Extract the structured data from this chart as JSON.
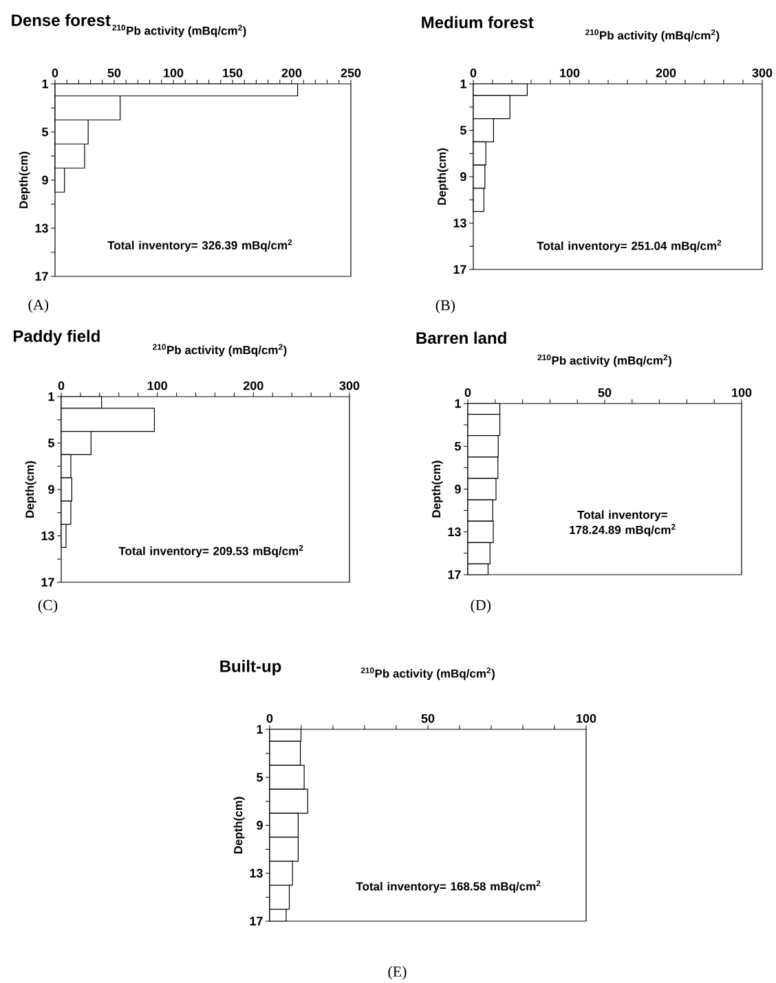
{
  "chart_data": [
    {
      "type": "histogram",
      "orientation": "horizontal",
      "title": "Dense forest",
      "xlabel": "$^{210}$Pb activity (mBq/cm$^{2}$)",
      "ylabel": "Depth(cm)",
      "color": "#ffffff",
      "bins": [
        1,
        2,
        4,
        6,
        8,
        10
      ],
      "values": [
        205,
        55,
        28,
        25,
        8
      ],
      "xlim": [
        0,
        250
      ],
      "xticks": [
        0,
        {
          "value": 10,
          "label": null
        },
        {
          "value": 20,
          "label": null
        },
        {
          "value": 30,
          "label": null
        },
        {
          "value": 40,
          "label": null
        },
        50,
        {
          "value": 60,
          "label": null
        },
        {
          "value": 70,
          "label": null
        },
        {
          "value": 80,
          "label": null
        },
        {
          "value": 90,
          "label": null
        },
        100,
        {
          "value": 110,
          "label": null
        },
        {
          "value": 120,
          "label": null
        },
        {
          "value": 130,
          "label": null
        },
        {
          "value": 140,
          "label": null
        },
        150,
        {
          "value": 160,
          "label": null
        },
        {
          "value": 170,
          "label": null
        },
        {
          "value": 180,
          "label": null
        },
        {
          "value": 190,
          "label": null
        },
        200,
        {
          "value": 210,
          "label": null
        },
        {
          "value": 220,
          "label": null
        },
        {
          "value": 230,
          "label": null
        },
        {
          "value": 240,
          "label": null
        },
        250
      ],
      "ylim": [
        17,
        1
      ],
      "yticks": [
        1,
        {
          "value": 3,
          "label": null
        },
        5,
        {
          "value": 7,
          "label": null
        },
        9,
        {
          "value": 11,
          "label": null
        },
        13,
        {
          "value": 15,
          "label": null
        },
        17
      ],
      "annotations": [
        "Total inventory= 326.39 mBq/cm$^{2}$",
        "(A)"
      ]
    },
    {
      "type": "histogram",
      "orientation": "horizontal",
      "title": "Medium forest",
      "xlabel": "$^{210}$Pb activity (mBq/cm$^{2}$)",
      "ylabel": "Depth(cm)",
      "color": "#ffffff",
      "bins": [
        1,
        2,
        4,
        6,
        8,
        10,
        12
      ],
      "values": [
        56,
        38,
        21,
        13,
        12,
        11
      ],
      "xlim": [
        0,
        300
      ],
      "xticks": [
        0,
        {
          "value": 20,
          "label": null
        },
        {
          "value": 40,
          "label": null
        },
        {
          "value": 60,
          "label": null
        },
        {
          "value": 80,
          "label": null
        },
        100,
        {
          "value": 120,
          "label": null
        },
        {
          "value": 140,
          "label": null
        },
        {
          "value": 160,
          "label": null
        },
        {
          "value": 180,
          "label": null
        },
        200,
        {
          "value": 220,
          "label": null
        },
        {
          "value": 240,
          "label": null
        },
        {
          "value": 260,
          "label": null
        },
        {
          "value": 280,
          "label": null
        },
        300
      ],
      "ylim": [
        17,
        1
      ],
      "yticks": [
        1,
        {
          "value": 3,
          "label": null
        },
        5,
        {
          "value": 7,
          "label": null
        },
        9,
        {
          "value": 11,
          "label": null
        },
        13,
        {
          "value": 15,
          "label": null
        },
        17
      ],
      "annotations": [
        "Total inventory= 251.04 mBq/cm$^{2}$",
        "(B)"
      ]
    },
    {
      "type": "histogram",
      "orientation": "horizontal",
      "title": "Paddy field",
      "xlabel": "$^{210}$Pb activity (mBq/cm$^{2}$)",
      "ylabel": "Depth(cm)",
      "color": "#ffffff",
      "bins": [
        1,
        2,
        4,
        6,
        8,
        10,
        12,
        14
      ],
      "values": [
        42,
        97,
        31,
        10,
        11,
        10,
        5
      ],
      "xlim": [
        0,
        300
      ],
      "xticks": [
        0,
        {
          "value": 20,
          "label": null
        },
        {
          "value": 40,
          "label": null
        },
        {
          "value": 60,
          "label": null
        },
        {
          "value": 80,
          "label": null
        },
        100,
        {
          "value": 120,
          "label": null
        },
        {
          "value": 140,
          "label": null
        },
        {
          "value": 160,
          "label": null
        },
        {
          "value": 180,
          "label": null
        },
        200,
        {
          "value": 220,
          "label": null
        },
        {
          "value": 240,
          "label": null
        },
        {
          "value": 260,
          "label": null
        },
        {
          "value": 280,
          "label": null
        },
        300
      ],
      "ylim": [
        17,
        1
      ],
      "yticks": [
        1,
        {
          "value": 3,
          "label": null
        },
        5,
        {
          "value": 7,
          "label": null
        },
        9,
        {
          "value": 11,
          "label": null
        },
        13,
        {
          "value": 15,
          "label": null
        },
        17
      ],
      "annotations": [
        "Total inventory= 209.53 mBq/cm$^{2}$",
        "(C)"
      ]
    },
    {
      "type": "histogram",
      "orientation": "horizontal",
      "title": "Barren land",
      "xlabel": "$^{210}$Pb activity (mBq/cm$^{2}$)",
      "ylabel": "Depth(cm)",
      "color": "#ffffff",
      "bins": [
        1,
        2,
        4,
        6,
        8,
        10,
        12,
        14,
        16,
        17
      ],
      "values": [
        11.7,
        11.7,
        11.1,
        11.0,
        10.3,
        9.1,
        9.3,
        8.1,
        7.4
      ],
      "xlim": [
        0,
        100
      ],
      "xticks": [
        0,
        {
          "value": 10,
          "label": null
        },
        {
          "value": 20,
          "label": null
        },
        {
          "value": 30,
          "label": null
        },
        {
          "value": 40,
          "label": null
        },
        50,
        {
          "value": 60,
          "label": null
        },
        {
          "value": 70,
          "label": null
        },
        {
          "value": 80,
          "label": null
        },
        {
          "value": 90,
          "label": null
        },
        100
      ],
      "ylim": [
        17,
        1
      ],
      "yticks": [
        1,
        {
          "value": 3,
          "label": null
        },
        5,
        {
          "value": 7,
          "label": null
        },
        9,
        {
          "value": 11,
          "label": null
        },
        13,
        {
          "value": 15,
          "label": null
        },
        17
      ],
      "annotations": [
        "Total inventory= 178.24.89 mBq/cm$^{2}$",
        "(D)"
      ]
    },
    {
      "type": "histogram",
      "orientation": "horizontal",
      "title": "Built-up",
      "xlabel": "$^{210}$Pb activity (mBq/cm$^{2}$)",
      "ylabel": "Depth(cm)",
      "color": "#ffffff",
      "bins": [
        1,
        2,
        4,
        6,
        8,
        10,
        12,
        14,
        16,
        17
      ],
      "values": [
        9.9,
        9.7,
        10.9,
        12.0,
        9.0,
        9.0,
        7.2,
        6.2,
        5.2
      ],
      "xlim": [
        0,
        100
      ],
      "xticks": [
        0,
        {
          "value": 10,
          "label": null
        },
        {
          "value": 20,
          "label": null
        },
        {
          "value": 30,
          "label": null
        },
        {
          "value": 40,
          "label": null
        },
        50,
        {
          "value": 60,
          "label": null
        },
        {
          "value": 70,
          "label": null
        },
        {
          "value": 80,
          "label": null
        },
        {
          "value": 90,
          "label": null
        },
        100
      ],
      "ylim": [
        17,
        1
      ],
      "yticks": [
        1,
        {
          "value": 3,
          "label": null
        },
        5,
        {
          "value": 7,
          "label": null
        },
        9,
        {
          "value": 11,
          "label": null
        },
        13,
        {
          "value": 15,
          "label": null
        },
        17
      ],
      "annotations": [
        "Total inventory= 168.58 mBq/cm$^{2}$",
        "(E)"
      ]
    }
  ]
}
